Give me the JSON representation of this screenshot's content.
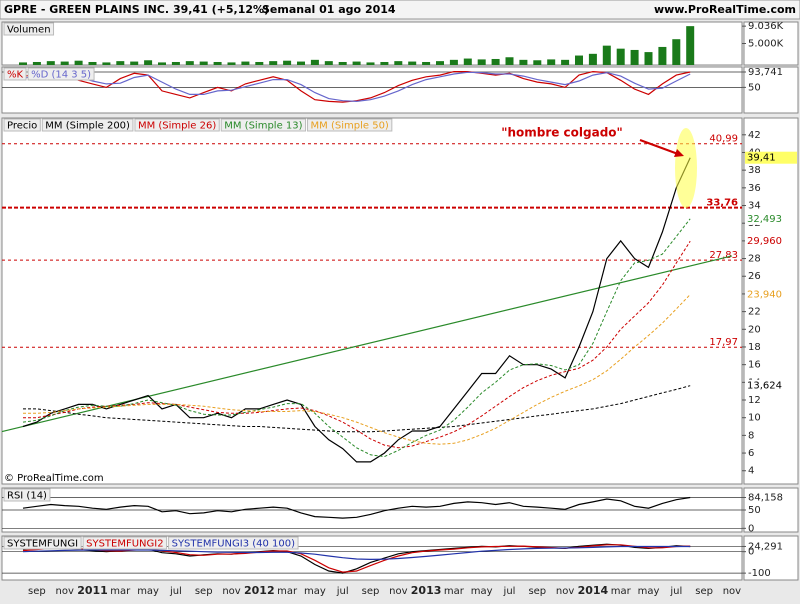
{
  "header": {
    "ticker": "GPRE - GREEN PLAINS INC.",
    "quote": "39,41 (+5,12%)",
    "period": "Semanal 01 ago 2014",
    "site": "www.ProRealTime.com"
  },
  "chart_data": [
    {
      "type": "bar",
      "title": "Volumen",
      "color": "#1a7a1a",
      "ylim": [
        0,
        10000
      ],
      "yticks": [
        {
          "value": 9036,
          "label": "9.036K"
        },
        {
          "value": 5000,
          "label": "5.000K"
        }
      ],
      "grid": false,
      "values": [
        600,
        700,
        900,
        800,
        1000,
        700,
        600,
        900,
        800,
        1100,
        600,
        700,
        900,
        800,
        700,
        600,
        800,
        700,
        900,
        1000,
        800,
        1200,
        900,
        700,
        800,
        600,
        700,
        900,
        800,
        700,
        900,
        1200,
        1500,
        1300,
        1400,
        1800,
        1200,
        1100,
        1300,
        1200,
        2200,
        2600,
        4500,
        3800,
        3500,
        3000,
        4200,
        6000,
        9036,
        null,
        null,
        null
      ]
    },
    {
      "type": "line",
      "ylim": [
        -23,
        108
      ],
      "grid": true,
      "yticks": [
        {
          "value": 93.741,
          "label": "93,741"
        },
        50
      ],
      "series": [
        {
          "name": "%K",
          "color": "#cc0000",
          "values": [
            80,
            90,
            95,
            85,
            70,
            60,
            50,
            75,
            90,
            85,
            40,
            30,
            20,
            35,
            50,
            40,
            60,
            70,
            80,
            70,
            40,
            15,
            10,
            8,
            12,
            20,
            35,
            55,
            70,
            80,
            85,
            95,
            95,
            90,
            85,
            90,
            75,
            65,
            60,
            50,
            85,
            95,
            92,
            70,
            45,
            30,
            60,
            85,
            93.741,
            null,
            null,
            null
          ]
        },
        {
          "name": "%D (14 3 5)",
          "color": "#6666cc",
          "values": [
            75,
            85,
            90,
            90,
            80,
            68,
            60,
            62,
            78,
            85,
            65,
            45,
            30,
            30,
            40,
            42,
            52,
            62,
            72,
            72,
            58,
            35,
            18,
            12,
            10,
            15,
            25,
            40,
            58,
            72,
            80,
            88,
            93,
            92,
            88,
            88,
            82,
            72,
            65,
            58,
            68,
            85,
            92,
            82,
            62,
            45,
            48,
            68,
            88,
            null,
            null,
            null
          ]
        }
      ]
    },
    {
      "type": "line",
      "ylim": [
        2.5,
        43.9
      ],
      "grid": false,
      "yticks": [
        4,
        6,
        8,
        10,
        12,
        14,
        16,
        18,
        20,
        22,
        24,
        26,
        28,
        30,
        32,
        34,
        36,
        38,
        40,
        42
      ],
      "categories": [
        null,
        "sep",
        null,
        "nov",
        null,
        "2011",
        null,
        "mar",
        null,
        "may",
        null,
        "jul",
        null,
        "sep",
        null,
        "nov",
        null,
        "2012",
        null,
        "mar",
        null,
        "may",
        null,
        "jul",
        null,
        "sep",
        null,
        "nov",
        null,
        "2013",
        null,
        "mar",
        null,
        "may",
        null,
        "jul",
        null,
        "sep",
        null,
        "nov",
        null,
        "2014",
        null,
        "mar",
        null,
        "may",
        null,
        "jul",
        null,
        "sep",
        null,
        "nov"
      ],
      "series": [
        {
          "name": "Precio",
          "color": "#000000",
          "dashed": false,
          "end_label": "39,41",
          "values": [
            9,
            9.5,
            10.5,
            11,
            11.5,
            11.5,
            11,
            11.5,
            12,
            12.5,
            11,
            11.5,
            10,
            10,
            10.5,
            10,
            11,
            11,
            11.5,
            12,
            11.5,
            9,
            7.5,
            6.5,
            5,
            5,
            6,
            7.5,
            8.5,
            8.5,
            9,
            11,
            13,
            15,
            15,
            17,
            16,
            16,
            15.5,
            14.5,
            18,
            22,
            28,
            30,
            28,
            27,
            31,
            36,
            39.41,
            null,
            null,
            null
          ]
        },
        {
          "name": "MM (Simple 200)",
          "color": "#000000",
          "dashed": true,
          "end_label": "13,624",
          "values": [
            11,
            11,
            10.8,
            10.6,
            10.4,
            10.2,
            10,
            9.9,
            9.8,
            9.7,
            9.6,
            9.5,
            9.4,
            9.3,
            9.2,
            9.1,
            9.0,
            9.0,
            8.9,
            8.8,
            8.7,
            8.6,
            8.5,
            8.4,
            8.4,
            8.4,
            8.5,
            8.6,
            8.7,
            8.8,
            8.9,
            9.0,
            9.2,
            9.4,
            9.6,
            9.8,
            10,
            10.2,
            10.4,
            10.6,
            10.8,
            11,
            11.3,
            11.6,
            12,
            12.4,
            12.8,
            13.2,
            13.624,
            null,
            null,
            null
          ]
        },
        {
          "name": "MM (Simple 26)",
          "color": "#cc0000",
          "dashed": true,
          "end_label": "29,960",
          "values": [
            10,
            10,
            10.3,
            10.6,
            11,
            11.2,
            11.3,
            11.4,
            11.5,
            11.7,
            11.6,
            11.5,
            11.2,
            10.9,
            10.6,
            10.5,
            10.5,
            10.6,
            10.8,
            11,
            11.1,
            10.8,
            10.2,
            9.5,
            8.6,
            7.6,
            6.9,
            6.6,
            6.8,
            7.3,
            7.8,
            8.4,
            9.2,
            10.2,
            11.3,
            12.4,
            13.4,
            14.2,
            14.8,
            15.2,
            15.6,
            16.5,
            18,
            20,
            21.5,
            23,
            25,
            27.5,
            29.96,
            null,
            null,
            null
          ]
        },
        {
          "name": "MM (Simple 13)",
          "color": "#2a8a2a",
          "dashed": true,
          "end_label": "32,493",
          "values": [
            9.5,
            9.7,
            10.2,
            10.8,
            11.2,
            11.4,
            11.3,
            11.3,
            11.6,
            12,
            11.7,
            11.4,
            10.8,
            10.4,
            10.3,
            10.3,
            10.6,
            10.9,
            11.2,
            11.6,
            11.6,
            10.5,
            9,
            7.8,
            6.6,
            5.8,
            5.6,
            6.3,
            7.2,
            8,
            8.6,
            9.7,
            11.2,
            12.8,
            14,
            15.4,
            16,
            16.1,
            15.9,
            15.4,
            16,
            18.4,
            22,
            25.5,
            27.5,
            27.8,
            28.5,
            30.5,
            32.493,
            null,
            null,
            null
          ]
        },
        {
          "name": "MM (Simple 50)",
          "color": "#e8a020",
          "dashed": true,
          "end_label": "23,940",
          "values": [
            10.5,
            10.5,
            10.6,
            10.8,
            11,
            11.1,
            11.2,
            11.3,
            11.4,
            11.5,
            11.5,
            11.5,
            11.4,
            11.3,
            11.1,
            10.9,
            10.8,
            10.7,
            10.7,
            10.7,
            10.8,
            10.7,
            10.4,
            10,
            9.5,
            8.9,
            8.3,
            7.8,
            7.4,
            7.1,
            7,
            7.1,
            7.5,
            8.1,
            8.8,
            9.7,
            10.6,
            11.5,
            12.3,
            13,
            13.6,
            14.3,
            15.3,
            16.6,
            18,
            19.3,
            20.7,
            22.3,
            23.94,
            null,
            null,
            null
          ]
        }
      ],
      "levels": [
        {
          "value": 40.99,
          "label": "40,99"
        },
        {
          "value": 33.76,
          "label": "33,76"
        },
        {
          "value": 27.83,
          "label": "27,83"
        },
        {
          "value": 17.97,
          "label": "17,97"
        }
      ],
      "trendline": {
        "x": [
          0,
          51
        ],
        "values": [
          9,
          28.3
        ],
        "color": "#2a8a2a"
      },
      "annotation": "\"hombre colgado\"",
      "credit": "© ProRealTime.com"
    },
    {
      "type": "line",
      "ylim": [
        -10,
        110
      ],
      "grid": true,
      "yticks": [
        {
          "value": 84.158,
          "label": "84,158"
        },
        50,
        0
      ],
      "series": [
        {
          "name": "RSI (14)",
          "color": "#000000",
          "values": [
            55,
            60,
            65,
            62,
            60,
            55,
            52,
            58,
            62,
            60,
            45,
            48,
            40,
            42,
            48,
            45,
            52,
            55,
            58,
            55,
            42,
            32,
            30,
            28,
            30,
            38,
            48,
            55,
            60,
            58,
            60,
            68,
            72,
            70,
            65,
            70,
            60,
            58,
            55,
            52,
            65,
            72,
            80,
            75,
            60,
            55,
            68,
            78,
            84.158,
            null,
            null,
            null
          ]
        }
      ]
    },
    {
      "type": "line",
      "ylim": [
        -132,
        73
      ],
      "grid": true,
      "yticks": [
        {
          "value": 24.291,
          "label": "24,291"
        },
        0,
        -100
      ],
      "series": [
        {
          "name": "SYSTEMFUNGI",
          "color": "#000000",
          "values": [
            10,
            15,
            20,
            15,
            10,
            5,
            0,
            5,
            10,
            12,
            -5,
            -10,
            -20,
            -15,
            -10,
            -12,
            -5,
            0,
            5,
            0,
            -20,
            -60,
            -90,
            -100,
            -80,
            -50,
            -30,
            -10,
            0,
            5,
            10,
            15,
            20,
            25,
            22,
            28,
            25,
            20,
            18,
            15,
            25,
            30,
            35,
            30,
            20,
            15,
            20,
            28,
            24.291,
            null,
            null,
            null
          ]
        },
        {
          "name": "SYSTEMFUNGI2",
          "color": "#cc0000",
          "values": [
            5,
            10,
            15,
            18,
            14,
            9,
            4,
            3,
            8,
            11,
            4,
            -4,
            -14,
            -17,
            -12,
            -11,
            -8,
            -2,
            3,
            3,
            -10,
            -40,
            -75,
            -95,
            -90,
            -65,
            -40,
            -20,
            -5,
            3,
            8,
            12,
            18,
            22,
            24,
            25,
            26,
            22,
            19,
            16,
            20,
            27,
            32,
            32,
            25,
            18,
            18,
            24,
            26,
            null,
            null,
            null
          ]
        },
        {
          "name": "SYSTEMFUNGI3 (40 100)",
          "color": "#2233aa",
          "values": [
            0,
            2,
            4,
            6,
            7,
            8,
            8,
            8,
            8,
            8,
            6,
            4,
            2,
            0,
            -2,
            -3,
            -4,
            -4,
            -3,
            -3,
            -6,
            -12,
            -20,
            -28,
            -34,
            -36,
            -35,
            -32,
            -27,
            -22,
            -16,
            -10,
            -4,
            2,
            6,
            10,
            13,
            15,
            16,
            17,
            18,
            20,
            22,
            24,
            24,
            24,
            24,
            24,
            24,
            null,
            null,
            null
          ]
        }
      ]
    }
  ]
}
